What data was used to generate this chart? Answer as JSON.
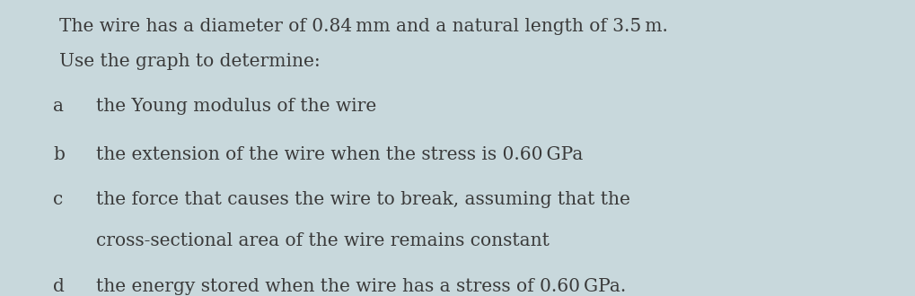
{
  "background_color": "#c8d8dc",
  "header_line1": "The wire has a diameter of 0.84 mm and a natural length of 3.5 m.",
  "header_line2": "Use the graph to determine:",
  "items": [
    {
      "label": "a",
      "text": "the Young modulus of the wire",
      "continuation": ""
    },
    {
      "label": "b",
      "text": "the extension of the wire when the stress is 0.60 GPa",
      "continuation": ""
    },
    {
      "label": "c",
      "text": "the force that causes the wire to break, assuming that the",
      "continuation": "cross-sectional area of the wire remains constant"
    },
    {
      "label": "d",
      "text": "the energy stored when the wire has a stress of 0.60 GPa.",
      "continuation": ""
    }
  ],
  "font_size": 14.5,
  "text_color": "#3a3a3a",
  "label_color": "#3a3a3a"
}
